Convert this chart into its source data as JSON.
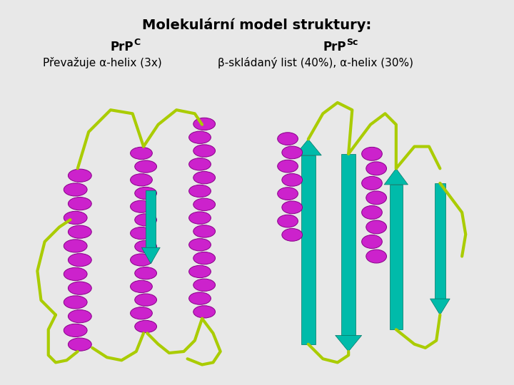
{
  "title": "Molekulární model struktury:",
  "title_fontsize": 14,
  "title_fontweight": "bold",
  "bg_color": "#e8e8e8",
  "image_bg": "#0a0a0a",
  "label_left_main": "PrP",
  "label_left_super": "C",
  "label_right_main": "PrP",
  "label_right_super": "Sc",
  "label_left_sub": "Převažuje α-helix (3x)",
  "label_right_sub": "β-skládaný list (40%), α-helix (30%)",
  "helix_color": "#CC22CC",
  "loop_color": "#AACC00",
  "beta_color": "#00BBAA",
  "label_fontsize": 12,
  "sub_fontsize": 11
}
